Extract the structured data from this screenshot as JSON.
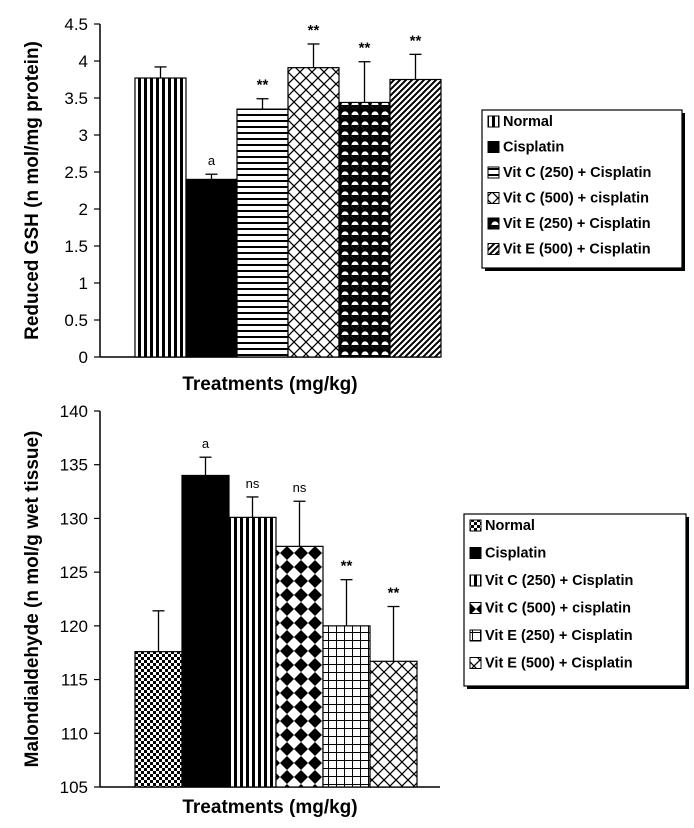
{
  "chart_data": [
    {
      "type": "bar",
      "xlabel": "Treatments (mg/kg)",
      "ylabel": "Reduced GSH (n mol/mg protein)",
      "ylim": [
        0,
        4.5
      ],
      "yticks": [
        "0",
        "0.5",
        "1",
        "1.5",
        "2",
        "2.5",
        "3",
        "3.5",
        "4",
        "4.5"
      ],
      "categories": [
        "Normal",
        "Cisplatin",
        "Vit C (250) + Cisplatin",
        "Vit C (500) + cisplatin",
        "Vit E (250) + Cisplatin",
        "Vit E (500) + Cisplatin"
      ],
      "values": [
        3.77,
        2.4,
        3.35,
        3.91,
        3.44,
        3.75
      ],
      "errors": [
        0.15,
        0.07,
        0.14,
        0.32,
        0.55,
        0.34
      ],
      "annotations": [
        "",
        "a",
        "**",
        "**",
        "**",
        "**"
      ],
      "patterns": [
        "vertical-lines",
        "solid-black",
        "horizontal-lines",
        "crosshatch-diamond",
        "circles",
        "diagonal-lines"
      ],
      "legend": {
        "position": "right",
        "entries": [
          "Normal",
          "Cisplatin",
          "Vit C (250) + Cisplatin",
          "Vit C (500) + cisplatin",
          "Vit E (250) + Cisplatin",
          "Vit E (500) + Cisplatin"
        ]
      }
    },
    {
      "type": "bar",
      "xlabel": "Treatments (mg/kg)",
      "ylabel": "Malondialdehyde (n mol/g wet tissue)",
      "ylim": [
        105,
        140
      ],
      "yticks": [
        "105",
        "110",
        "115",
        "120",
        "125",
        "130",
        "135",
        "140"
      ],
      "categories": [
        "Normal",
        "Cisplatin",
        "Vit C (250) + Cisplatin",
        "Vit C (500) + cisplatin",
        "Vit E (250) + Cisplatin",
        "Vit E (500) + Cisplatin"
      ],
      "values": [
        117.6,
        134.0,
        130.1,
        127.4,
        120.0,
        116.7
      ],
      "errors": [
        3.8,
        1.7,
        1.9,
        4.2,
        4.3,
        5.1
      ],
      "annotations": [
        "",
        "a",
        "ns",
        "ns",
        "**",
        "**"
      ],
      "patterns": [
        "checker",
        "solid-black",
        "vertical-lines",
        "diamonds",
        "grid",
        "crosshatch-diamond"
      ],
      "legend": {
        "position": "right",
        "entries": [
          "Normal",
          "Cisplatin",
          "Vit C (250) + Cisplatin",
          "Vit C (500) + cisplatin",
          "Vit E (250) + Cisplatin",
          "Vit E (500) + Cisplatin"
        ]
      }
    }
  ]
}
